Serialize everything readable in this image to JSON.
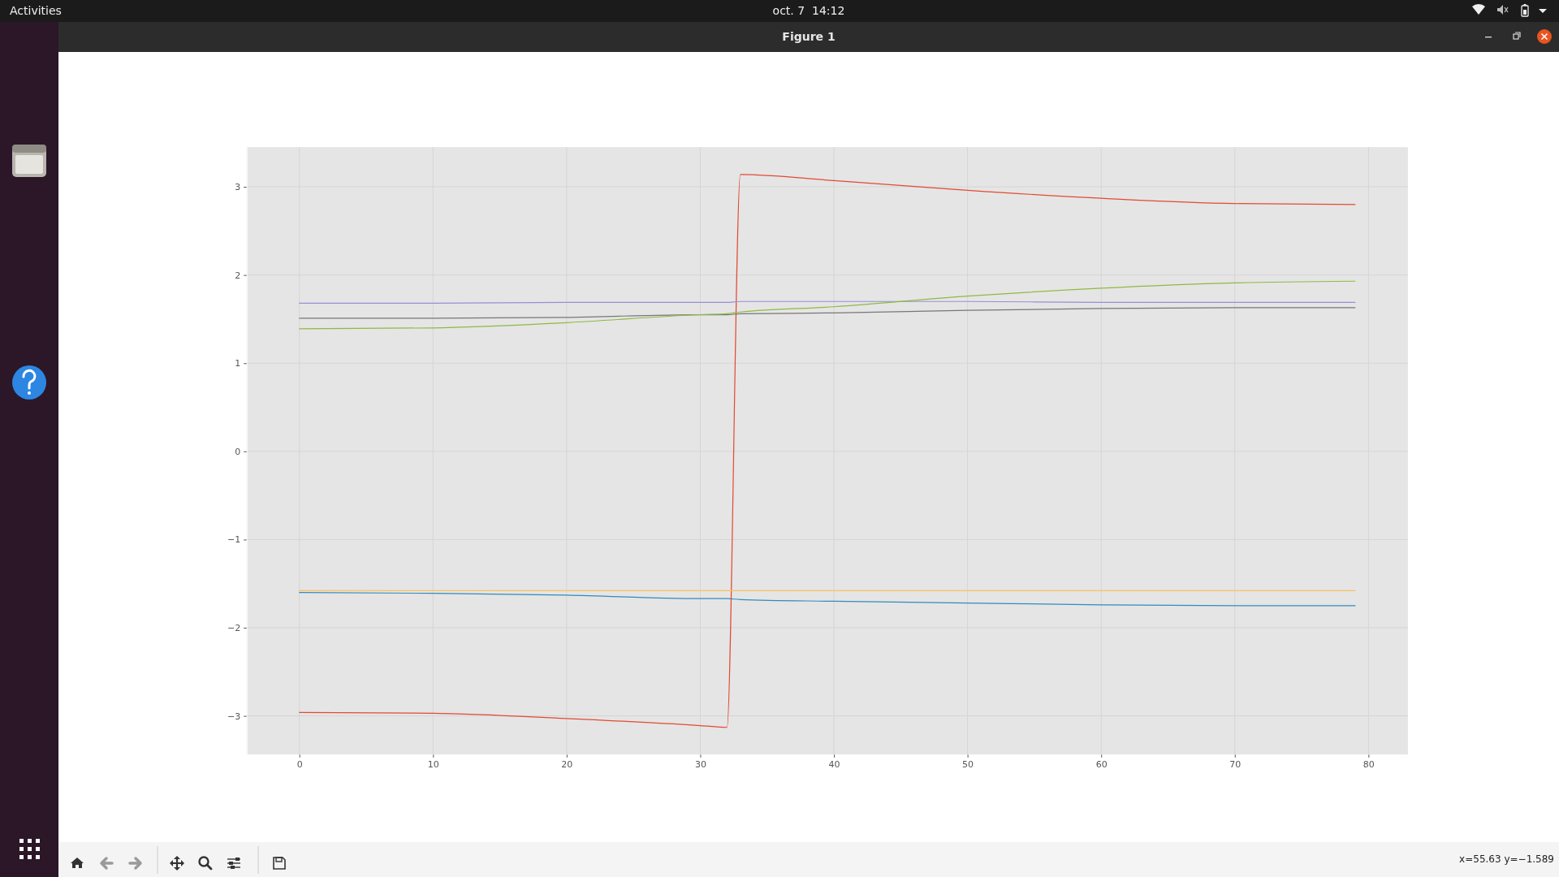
{
  "chart_data": {
    "type": "line",
    "title": "Figure 1",
    "x": [
      0,
      10,
      20,
      30,
      32,
      33,
      40,
      50,
      60,
      70,
      79
    ],
    "series": [
      {
        "color": "#e24a33",
        "values": [
          -2.96,
          -2.97,
          -3.03,
          -3.11,
          -3.13,
          3.14,
          3.07,
          2.96,
          2.87,
          2.81,
          2.8
        ]
      },
      {
        "color": "#348abd",
        "values": [
          -1.6,
          -1.61,
          -1.63,
          -1.67,
          -1.67,
          -1.68,
          -1.7,
          -1.72,
          -1.74,
          -1.75,
          -1.75
        ]
      },
      {
        "color": "#988ed5",
        "values": [
          1.68,
          1.68,
          1.69,
          1.69,
          1.69,
          1.7,
          1.7,
          1.7,
          1.69,
          1.69,
          1.69
        ]
      },
      {
        "color": "#777777",
        "values": [
          1.51,
          1.51,
          1.52,
          1.55,
          1.55,
          1.56,
          1.57,
          1.6,
          1.62,
          1.63,
          1.63
        ]
      },
      {
        "color": "#fbc15e",
        "values": [
          -1.58,
          -1.58,
          -1.58,
          -1.58,
          -1.58,
          -1.58,
          -1.58,
          -1.58,
          -1.58,
          -1.58,
          -1.58
        ]
      },
      {
        "color": "#8eba42",
        "values": [
          1.39,
          1.4,
          1.46,
          1.55,
          1.56,
          1.58,
          1.64,
          1.76,
          1.85,
          1.91,
          1.93
        ]
      }
    ],
    "xlim": [
      -3.95,
      82.95
    ],
    "ylim": [
      -3.44,
      3.45
    ],
    "xticks": [
      0,
      10,
      20,
      30,
      40,
      50,
      60,
      70,
      80
    ],
    "yticks": [
      {
        "value": -3,
        "label": "−3"
      },
      {
        "value": -2,
        "label": "−2"
      },
      {
        "value": -1,
        "label": "−1"
      },
      0,
      1,
      2,
      3
    ],
    "grid": true,
    "annotations": [
      "Activities",
      "oct. 7  14:12",
      "x=55.63 y=−1.589"
    ]
  }
}
